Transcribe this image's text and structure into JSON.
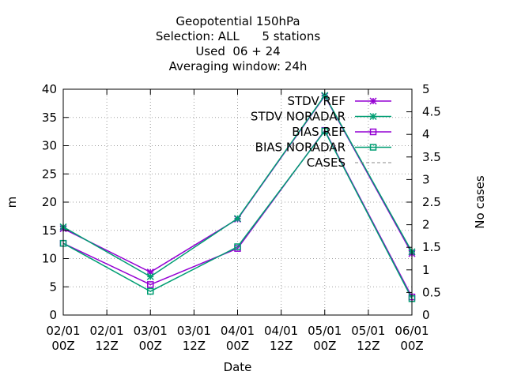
{
  "chart_data": {
    "type": "line",
    "title_lines": [
      "Geopotential 150hPa",
      "Selection: ALL      5 stations",
      "Used  06 + 24",
      "Averaging window: 24h"
    ],
    "xlabel": "Date",
    "ylabel": "m",
    "y2label": "No cases",
    "x_ticks": [
      {
        "date": "02/01",
        "time": "00Z"
      },
      {
        "date": "02/01",
        "time": "12Z"
      },
      {
        "date": "03/01",
        "time": "00Z"
      },
      {
        "date": "03/01",
        "time": "12Z"
      },
      {
        "date": "04/01",
        "time": "00Z"
      },
      {
        "date": "04/01",
        "time": "12Z"
      },
      {
        "date": "05/01",
        "time": "00Z"
      },
      {
        "date": "05/01",
        "time": "12Z"
      },
      {
        "date": "06/01",
        "time": "00Z"
      }
    ],
    "x": [
      "02/01 00Z",
      "03/01 00Z",
      "04/01 00Z",
      "05/01 00Z",
      "06/01 00Z"
    ],
    "ylim": [
      0,
      40
    ],
    "y_ticks": [
      0,
      5,
      10,
      15,
      20,
      25,
      30,
      35,
      40
    ],
    "y2lim": [
      0,
      5
    ],
    "y2_ticks": [
      "0",
      "0.5",
      "1",
      "1.5",
      "2",
      "2.5",
      "3",
      "3.5",
      "4",
      "4.5",
      "5"
    ],
    "grid": true,
    "legend_position": "top-right",
    "series": [
      {
        "name": "STDV REF",
        "values": [
          15.3,
          7.6,
          17.0,
          38.8,
          10.9
        ],
        "color": "#9400d3",
        "marker": "star"
      },
      {
        "name": "STDV NORADAR",
        "values": [
          15.6,
          6.8,
          17.1,
          38.9,
          11.2
        ],
        "color": "#009e73",
        "marker": "star"
      },
      {
        "name": "BIAS REF",
        "values": [
          12.7,
          5.4,
          11.8,
          32.7,
          3.2
        ],
        "color": "#9400d3",
        "marker": "square"
      },
      {
        "name": "BIAS NORADAR",
        "values": [
          12.7,
          4.2,
          12.1,
          32.6,
          2.9
        ],
        "color": "#009e73",
        "marker": "square"
      },
      {
        "name": "CASES",
        "values": [
          5,
          5,
          5,
          5,
          5
        ],
        "color": "#888888",
        "marker": "none",
        "dashed": true,
        "axis": "y2"
      }
    ]
  }
}
